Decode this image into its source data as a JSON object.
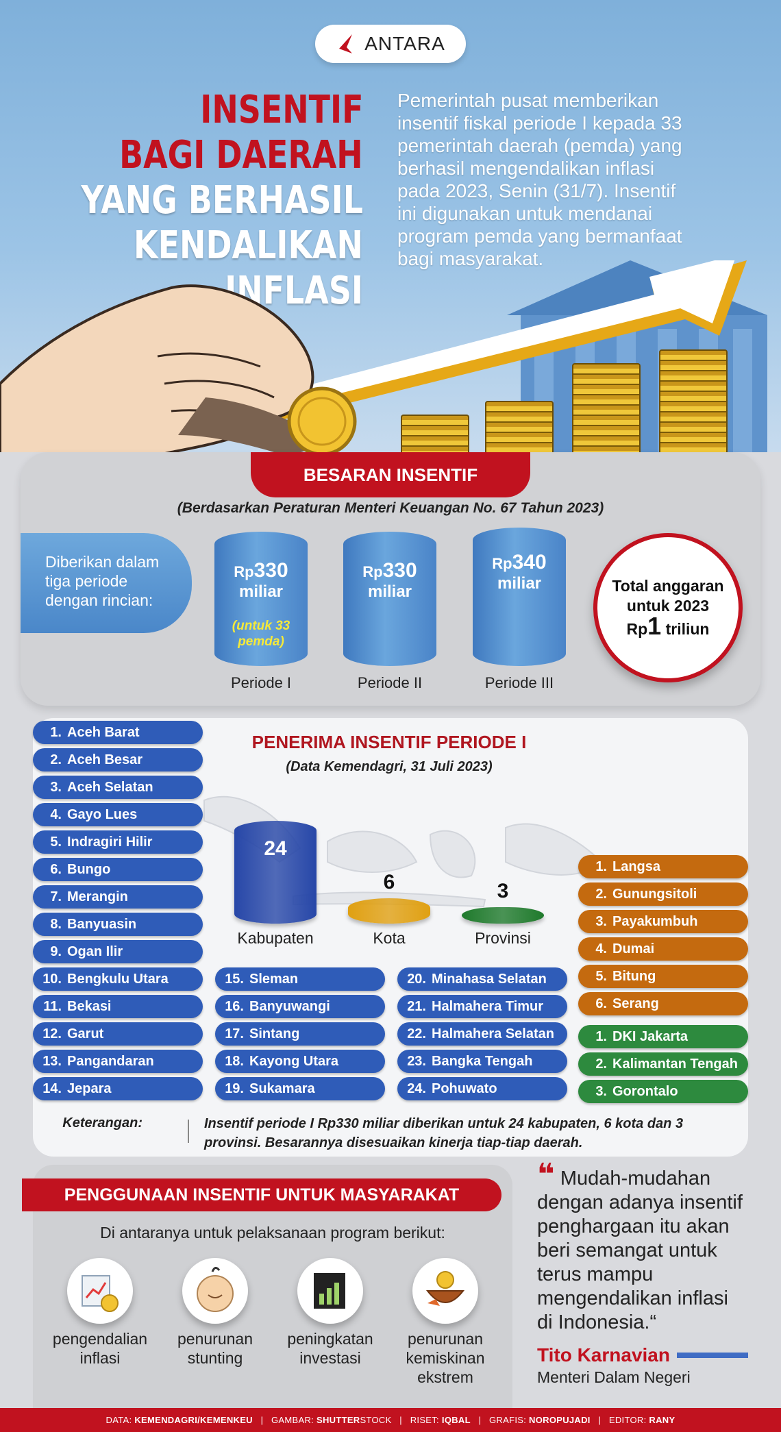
{
  "header": {
    "logo": "ANTARA",
    "title_lines": [
      "INSENTIF",
      "BAGI DAERAH",
      "YANG BERHASIL",
      "KENDALIKAN INFLASI"
    ],
    "intro_lines": [
      "Pemerintah pusat memberikan",
      "insentif fiskal periode I kepada 33",
      "pemerintah daerah (pemda) yang",
      "berhasil mengendalikan inflasi",
      "pada 2023, Senin (31/7). Insentif",
      "ini digunakan untuk mendanai",
      "program pemda yang bermanfaat",
      "bagi masyarakat."
    ]
  },
  "besaran": {
    "title": "BESARAN INSENTIF",
    "subtitle": "(Berdasarkan Peraturan Menteri Keuangan No. 67 Tahun 2023)",
    "intro_lines": [
      "Diberikan dalam",
      "tiga periode",
      "dengan rincian:"
    ],
    "periods": [
      {
        "currency": "Rp",
        "amount": "330",
        "unit": "miliar",
        "note_lines": [
          "(untuk 33",
          "pemda)"
        ],
        "label": "Periode I"
      },
      {
        "currency": "Rp",
        "amount": "330",
        "unit": "miliar",
        "note_lines": [],
        "label": "Periode II"
      },
      {
        "currency": "Rp",
        "amount": "340",
        "unit": "miliar",
        "note_lines": [],
        "label": "Periode III"
      }
    ],
    "total_lines": [
      "Total anggaran",
      "untuk 2023"
    ],
    "total_currency": "Rp",
    "total_amount": "1",
    "total_unit": "triliun"
  },
  "penerima": {
    "title": "PENERIMA INSENTIF PERIODE I",
    "subtitle": "(Data Kemendagri, 31 Juli 2023)",
    "bars": [
      {
        "label": "Kabupaten",
        "value": 24,
        "color": "#2747a8"
      },
      {
        "label": "Kota",
        "value": 6,
        "color": "#e0a012"
      },
      {
        "label": "Provinsi",
        "value": 3,
        "color": "#1f7a2c"
      }
    ],
    "kabupaten": [
      "Aceh Barat",
      "Aceh Besar",
      "Aceh Selatan",
      "Gayo Lues",
      "Indragiri Hilir",
      "Bungo",
      "Merangin",
      "Banyuasin",
      "Ogan Ilir",
      "Bengkulu Utara",
      "Bekasi",
      "Garut",
      "Pangandaran",
      "Jepara",
      "Sleman",
      "Banyuwangi",
      "Sintang",
      "Kayong Utara",
      "Sukamara",
      "Minahasa Selatan",
      "Halmahera Timur",
      "Halmahera Selatan",
      "Bangka Tengah",
      "Pohuwato"
    ],
    "kota": [
      "Langsa",
      "Gunungsitoli",
      "Payakumbuh",
      "Dumai",
      "Bitung",
      "Serang"
    ],
    "provinsi": [
      "DKI Jakarta",
      "Kalimantan Tengah",
      "Gorontalo"
    ],
    "keterangan_label": "Keterangan:",
    "keterangan_lines": [
      "Insentif periode I Rp330 miliar diberikan untuk 24 kabupaten, 6 kota dan 3",
      "provinsi. Besarannya disesuaikan kinerja tiap-tiap daerah."
    ]
  },
  "penggunaan": {
    "title": "PENGGUNAAN INSENTIF UNTUK MASYARAKAT",
    "subtitle": "Di antaranya untuk pelaksanaan program berikut:",
    "items": [
      {
        "icon": "inflation-chart-icon",
        "lines": [
          "pengendalian",
          "inflasi"
        ]
      },
      {
        "icon": "baby-icon",
        "lines": [
          "penurunan",
          "stunting"
        ]
      },
      {
        "icon": "investment-chart-icon",
        "lines": [
          "peningkatan",
          "investasi"
        ]
      },
      {
        "icon": "coin-bowl-icon",
        "lines": [
          "penurunan",
          "kemiskinan",
          "ekstrem"
        ]
      }
    ]
  },
  "quote": {
    "mark": "❝",
    "lines": [
      "Mudah-mudahan",
      "dengan adanya insentif",
      "penghargaan itu akan",
      "beri semangat untuk",
      "terus mampu",
      "mengendalikan inflasi",
      "di Indonesia.“"
    ],
    "author": "Tito Karnavian",
    "role": "Menteri Dalam Negeri"
  },
  "footer": {
    "data_label": "DATA:",
    "data_value": "KEMENDAGRI/KEMENKEU",
    "gambar_label": "GAMBAR:",
    "gambar_value": "SHUTTER",
    "gambar_value2": "STOCK",
    "riset_label": "RISET:",
    "riset_value": "IQBAL",
    "grafis_label": "GRAFIS:",
    "grafis_value": "NOROPUJADI",
    "editor_label": "EDITOR:",
    "editor_value": "RANY"
  },
  "colors": {
    "brand_red": "#c1121f",
    "blue": "#2f5cb8",
    "orange": "#c46a0f",
    "green": "#2d8a3e"
  }
}
